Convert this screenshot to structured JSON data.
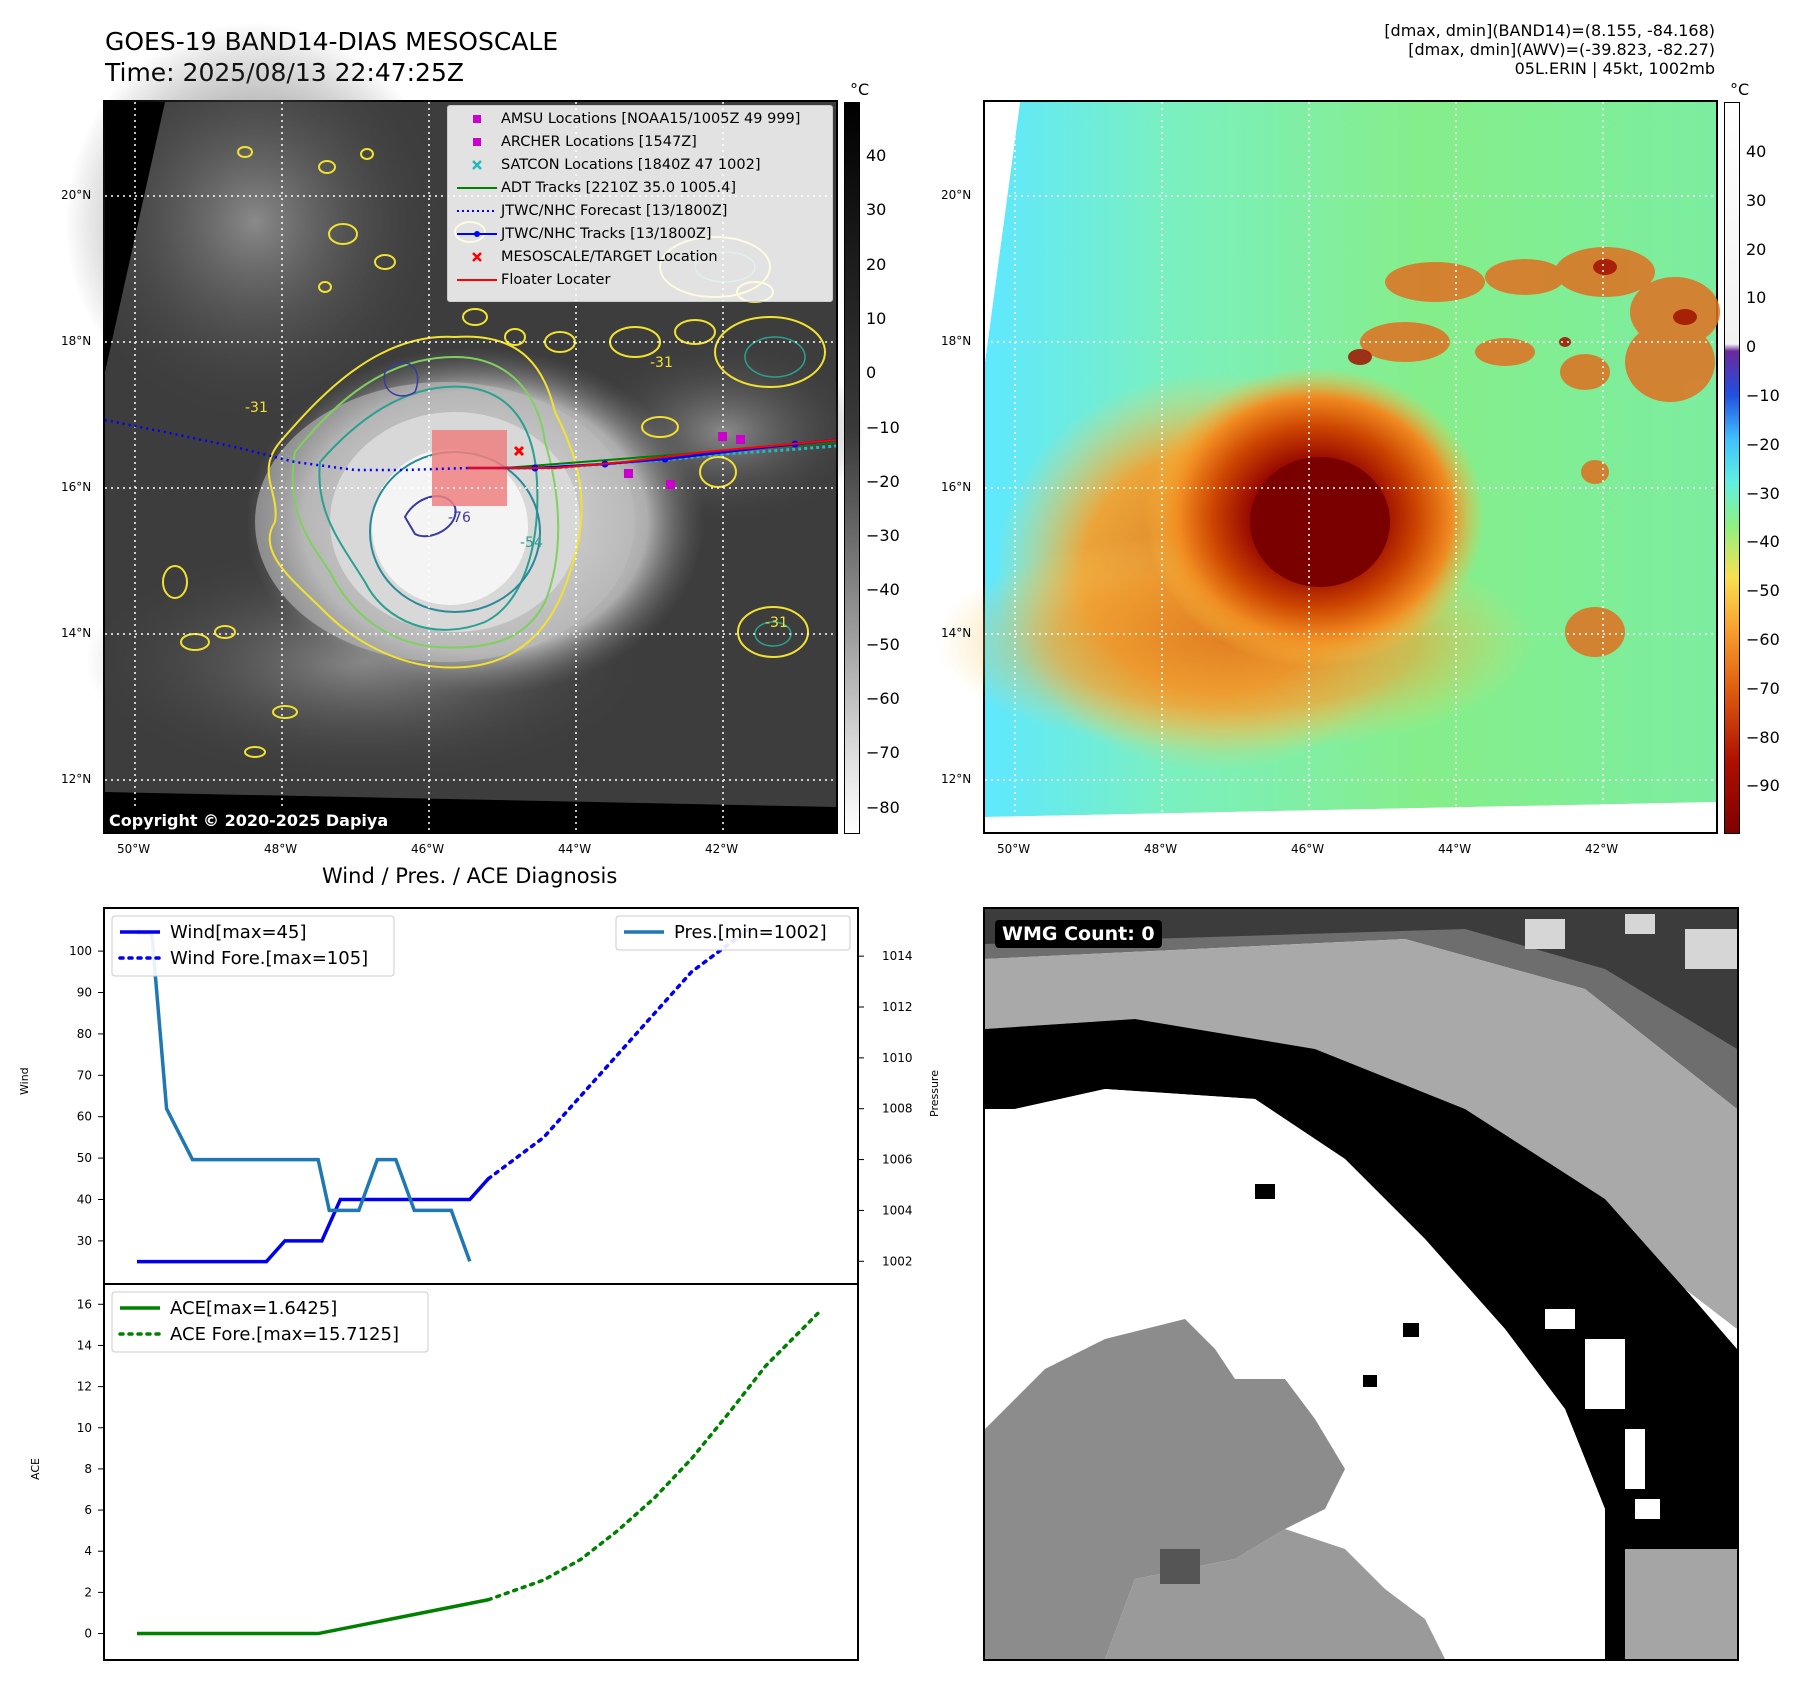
{
  "header": {
    "title_line1": "GOES-19 BAND14-DIAS MESOSCALE",
    "title_line2": "Time: 2025/08/13 22:47:25Z",
    "meta_line1": "[dmax, dmin](BAND14)=(8.155, -84.168)",
    "meta_line2": "[dmax, dmin](AWV)=(-39.823, -82.27)",
    "meta_line3": "05L.ERIN | 45kt, 1002mb"
  },
  "map": {
    "lat_labels": [
      "20°N",
      "18°N",
      "16°N",
      "14°N",
      "12°N"
    ],
    "lon_labels": [
      "50°W",
      "48°W",
      "46°W",
      "44°W",
      "42°W"
    ],
    "copyright": "Copyright © 2020-2025 Dapiya",
    "legend": [
      {
        "label": "AMSU Locations [NOAA15/1005Z 49 999]",
        "color": "#cc00cc",
        "marker": "square"
      },
      {
        "label": "ARCHER Locations [1547Z]",
        "color": "#cc00cc",
        "marker": "square"
      },
      {
        "label": "SATCON Locations [1840Z 47 1002]",
        "color": "#22bbbb",
        "marker": "x"
      },
      {
        "label": "ADT Tracks [2210Z 35.0 1005.4]",
        "color": "#008000",
        "marker": "line"
      },
      {
        "label": "JTWC/NHC Forecast [13/1800Z]",
        "color": "#0000ff",
        "marker": "dotted"
      },
      {
        "label": "JTWC/NHC Tracks [13/1800Z]",
        "color": "#0000ff",
        "marker": "line-dot"
      },
      {
        "label": "MESOSCALE/TARGET Location",
        "color": "#ff0000",
        "marker": "x"
      },
      {
        "label": "Floater Locater",
        "color": "#ff0000",
        "marker": "line"
      }
    ],
    "contour_labels": [
      "-31",
      "-31",
      "-31",
      "-54",
      "-76"
    ]
  },
  "colorbar_left": {
    "unit": "°C",
    "ticks": [
      "40",
      "30",
      "20",
      "10",
      "0",
      "−10",
      "−20",
      "−30",
      "−40",
      "−50",
      "−60",
      "−70",
      "−80"
    ]
  },
  "colorbar_right": {
    "unit": "°C",
    "ticks": [
      "40",
      "30",
      "20",
      "10",
      "0",
      "−10",
      "−20",
      "−30",
      "−40",
      "−50",
      "−60",
      "−70",
      "−80",
      "−90"
    ]
  },
  "diagnosis": {
    "title": "Wind / Pres. / ACE Diagnosis",
    "wind_axis_label": "Wind",
    "pressure_axis_label": "Pressure",
    "ace_axis_label": "ACE",
    "legend_wind": "Wind[max=45]",
    "legend_wind_fore": "Wind Fore.[max=105]",
    "legend_pres": "Pres.[min=1002]",
    "legend_ace": "ACE[max=1.6425]",
    "legend_ace_fore": "ACE Fore.[max=15.7125]"
  },
  "wmg": {
    "label": "WMG Count: 0"
  },
  "chart_data": [
    {
      "type": "line",
      "title": "Wind / Pres. / ACE Diagnosis",
      "ylabel": "Wind",
      "y2label": "Pressure",
      "ylim": [
        22,
        108
      ],
      "y2lim": [
        1001.5,
        1015.5
      ],
      "yticks": [
        30,
        40,
        50,
        60,
        70,
        80,
        90,
        100
      ],
      "y2ticks": [
        1002,
        1004,
        1006,
        1008,
        1010,
        1012,
        1014
      ],
      "x": [
        0,
        1,
        2,
        3,
        4,
        5,
        6,
        7,
        8,
        9,
        10,
        11
      ],
      "series": [
        {
          "name": "Wind[max=45]",
          "color": "#0000ee",
          "style": "solid",
          "axis": "left",
          "values": [
            25,
            25,
            25,
            25,
            25,
            30,
            30,
            40,
            40,
            40,
            40,
            40,
            45
          ],
          "x": [
            0,
            1,
            2,
            3,
            3.5,
            4,
            5,
            5.5,
            6,
            7,
            8,
            9,
            9.5
          ]
        },
        {
          "name": "Wind Fore.[max=105]",
          "color": "#0000ee",
          "style": "dotted",
          "axis": "left",
          "values": [
            45,
            55,
            65,
            75,
            85,
            95,
            105
          ],
          "x": [
            9.5,
            11,
            12,
            13,
            14,
            15,
            16.5
          ]
        },
        {
          "name": "Pres.[min=1002]",
          "color": "#1f77b4",
          "style": "solid",
          "axis": "right",
          "values": [
            1014.9,
            1014.9,
            1008,
            1006,
            1006,
            1006,
            1006,
            1006,
            1004,
            1004,
            1006,
            1006,
            1004,
            1004,
            1002
          ],
          "x": [
            0,
            0.4,
            0.8,
            1.5,
            2,
            3,
            4,
            4.9,
            5.2,
            6,
            6.5,
            7,
            7.5,
            8.5,
            9
          ]
        }
      ]
    },
    {
      "type": "line",
      "ylabel": "ACE",
      "ylim": [
        -0.8,
        16.5
      ],
      "yticks": [
        0,
        2,
        4,
        6,
        8,
        10,
        12,
        14,
        16
      ],
      "series": [
        {
          "name": "ACE[max=1.6425]",
          "color": "#008000",
          "style": "solid",
          "x": [
            0,
            4.9,
            9.5
          ],
          "values": [
            0,
            0,
            1.6425
          ]
        },
        {
          "name": "ACE Fore.[max=15.7125]",
          "color": "#008000",
          "style": "dotted",
          "x": [
            9.5,
            11,
            12,
            13,
            14,
            15,
            16,
            17,
            18.5
          ],
          "values": [
            1.6425,
            2.6,
            3.6,
            5.0,
            6.6,
            8.5,
            10.7,
            13.0,
            15.7125
          ]
        }
      ]
    }
  ]
}
